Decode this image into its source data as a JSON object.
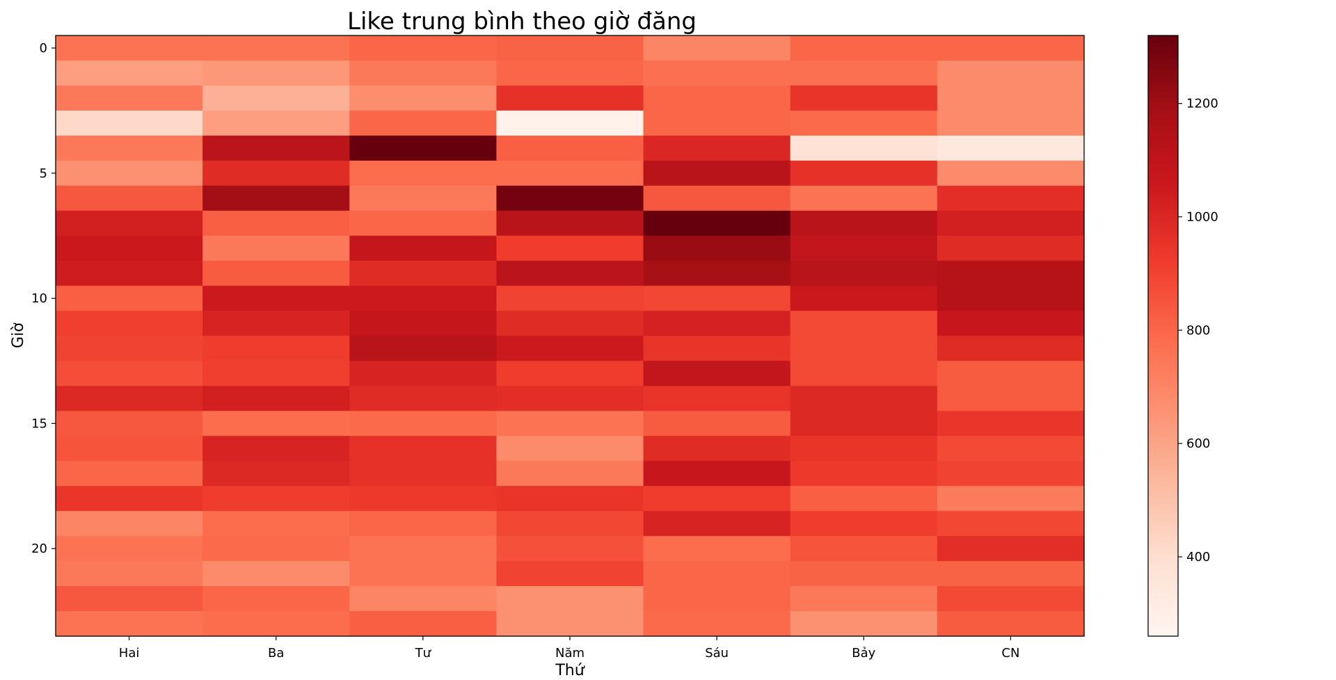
{
  "chart_data": {
    "type": "heatmap",
    "title": "Like trung bình theo giờ đăng",
    "xlabel": "Thứ",
    "ylabel": "Giờ",
    "columns": [
      "Hai",
      "Ba",
      "Tư",
      "Năm",
      "Sáu",
      "Bảy",
      "CN"
    ],
    "rows": [
      0,
      1,
      2,
      3,
      4,
      5,
      6,
      7,
      8,
      9,
      10,
      11,
      12,
      13,
      14,
      15,
      16,
      17,
      18,
      19,
      20,
      21,
      22,
      23
    ],
    "y_ticks": [
      0,
      5,
      10,
      15,
      20
    ],
    "values": [
      [
        760,
        760,
        800,
        810,
        700,
        800,
        800
      ],
      [
        620,
        640,
        740,
        800,
        770,
        770,
        680
      ],
      [
        740,
        560,
        670,
        960,
        800,
        950,
        680
      ],
      [
        420,
        620,
        800,
        280,
        800,
        790,
        680
      ],
      [
        740,
        1110,
        1320,
        820,
        1000,
        380,
        340
      ],
      [
        660,
        980,
        780,
        780,
        1120,
        960,
        680
      ],
      [
        840,
        1190,
        740,
        1290,
        840,
        760,
        970
      ],
      [
        1030,
        820,
        800,
        1120,
        1320,
        1120,
        1030
      ],
      [
        1060,
        740,
        1080,
        920,
        1210,
        1090,
        980
      ],
      [
        1040,
        830,
        980,
        1110,
        1180,
        1120,
        1130
      ],
      [
        820,
        1050,
        1050,
        900,
        890,
        1060,
        1130
      ],
      [
        910,
        1010,
        1080,
        980,
        1020,
        880,
        1070
      ],
      [
        900,
        920,
        1120,
        1050,
        950,
        880,
        980
      ],
      [
        870,
        910,
        1010,
        920,
        1090,
        880,
        830
      ],
      [
        990,
        1030,
        980,
        970,
        950,
        990,
        830
      ],
      [
        840,
        780,
        790,
        760,
        830,
        990,
        940
      ],
      [
        850,
        1010,
        960,
        680,
        980,
        950,
        880
      ],
      [
        800,
        990,
        960,
        740,
        1070,
        930,
        900
      ],
      [
        940,
        920,
        930,
        950,
        920,
        820,
        730
      ],
      [
        700,
        780,
        800,
        890,
        1010,
        920,
        890
      ],
      [
        760,
        790,
        760,
        860,
        780,
        850,
        970
      ],
      [
        740,
        680,
        760,
        900,
        800,
        810,
        810
      ],
      [
        840,
        800,
        700,
        660,
        800,
        740,
        880
      ],
      [
        760,
        780,
        820,
        660,
        790,
        660,
        830
      ]
    ],
    "vmin": 260,
    "vmax": 1320,
    "colorbar": {
      "ticks": [
        400,
        600,
        800,
        1000,
        1200
      ]
    },
    "colormap": "Reds",
    "colormap_stops": [
      "#fff5f0",
      "#fee0d2",
      "#fcbba1",
      "#fc9272",
      "#fb6a4a",
      "#ef3b2c",
      "#cb181d",
      "#a50f15",
      "#67000d"
    ],
    "grid": false,
    "legend": "colorbar-right"
  }
}
